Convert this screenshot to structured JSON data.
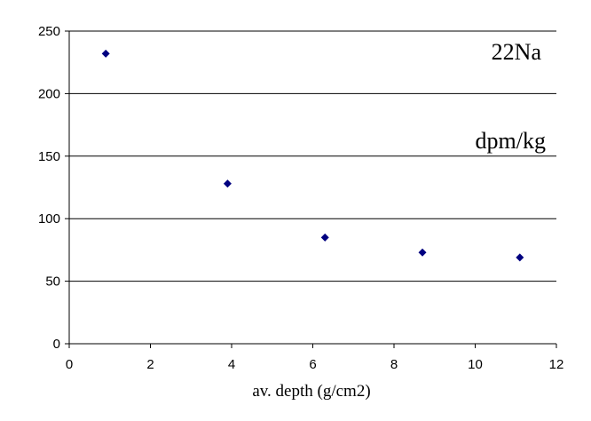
{
  "chart_data": {
    "type": "scatter",
    "xlabel": "av. depth (g/cm2)",
    "ylabel": "",
    "annotations": [
      "22Na",
      "dpm/kg"
    ],
    "xlim": [
      0,
      12
    ],
    "ylim": [
      0,
      250
    ],
    "x_ticks": [
      "0",
      "2",
      "4",
      "6",
      "8",
      "10",
      "12"
    ],
    "y_ticks": [
      "0",
      "50",
      "100",
      "150",
      "200",
      "250"
    ],
    "grid": "horizontal",
    "series": [
      {
        "x": [
          0.9,
          3.9,
          6.3,
          8.7,
          11.1
        ],
        "y": [
          232,
          128,
          85,
          73,
          69
        ],
        "color": "#000080",
        "marker": "diamond"
      }
    ]
  }
}
